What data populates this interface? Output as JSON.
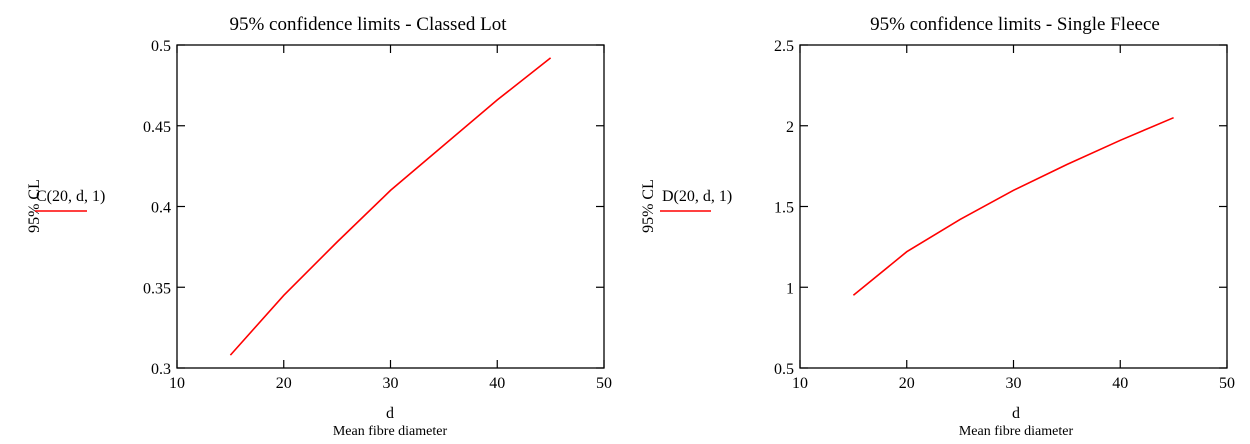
{
  "chart_data": [
    {
      "type": "line",
      "title": "95% confidence limits - Classed Lot",
      "xlabel": "d",
      "xlabel_sub": "Mean fibre diameter",
      "ylabel": "95% CL",
      "xlim": [
        10,
        50
      ],
      "ylim": [
        0.3,
        0.5
      ],
      "xticks": [
        "10",
        "20",
        "30",
        "40",
        "50"
      ],
      "yticks": [
        "0.3",
        "0.35",
        "0.4",
        "0.45",
        "0.5"
      ],
      "grid": false,
      "series": [
        {
          "name": "C(20, d, 1)",
          "color": "#ff0000",
          "x": [
            15,
            20,
            25,
            30,
            35,
            40,
            45
          ],
          "y": [
            0.308,
            0.345,
            0.378,
            0.41,
            0.438,
            0.466,
            0.492
          ]
        }
      ]
    },
    {
      "type": "line",
      "title": "95% confidence limits - Single Fleece",
      "xlabel": "d",
      "xlabel_sub": "Mean fibre diameter",
      "ylabel": "95% CL",
      "xlim": [
        10,
        50
      ],
      "ylim": [
        0.5,
        2.5
      ],
      "xticks": [
        "10",
        "20",
        "30",
        "40",
        "50"
      ],
      "yticks": [
        "0.5",
        "1",
        "1.5",
        "2",
        "2.5"
      ],
      "grid": false,
      "series": [
        {
          "name": "D(20, d, 1)",
          "color": "#ff0000",
          "x": [
            15,
            20,
            25,
            30,
            35,
            40,
            45
          ],
          "y": [
            0.95,
            1.22,
            1.42,
            1.6,
            1.76,
            1.91,
            2.05
          ]
        }
      ]
    }
  ]
}
